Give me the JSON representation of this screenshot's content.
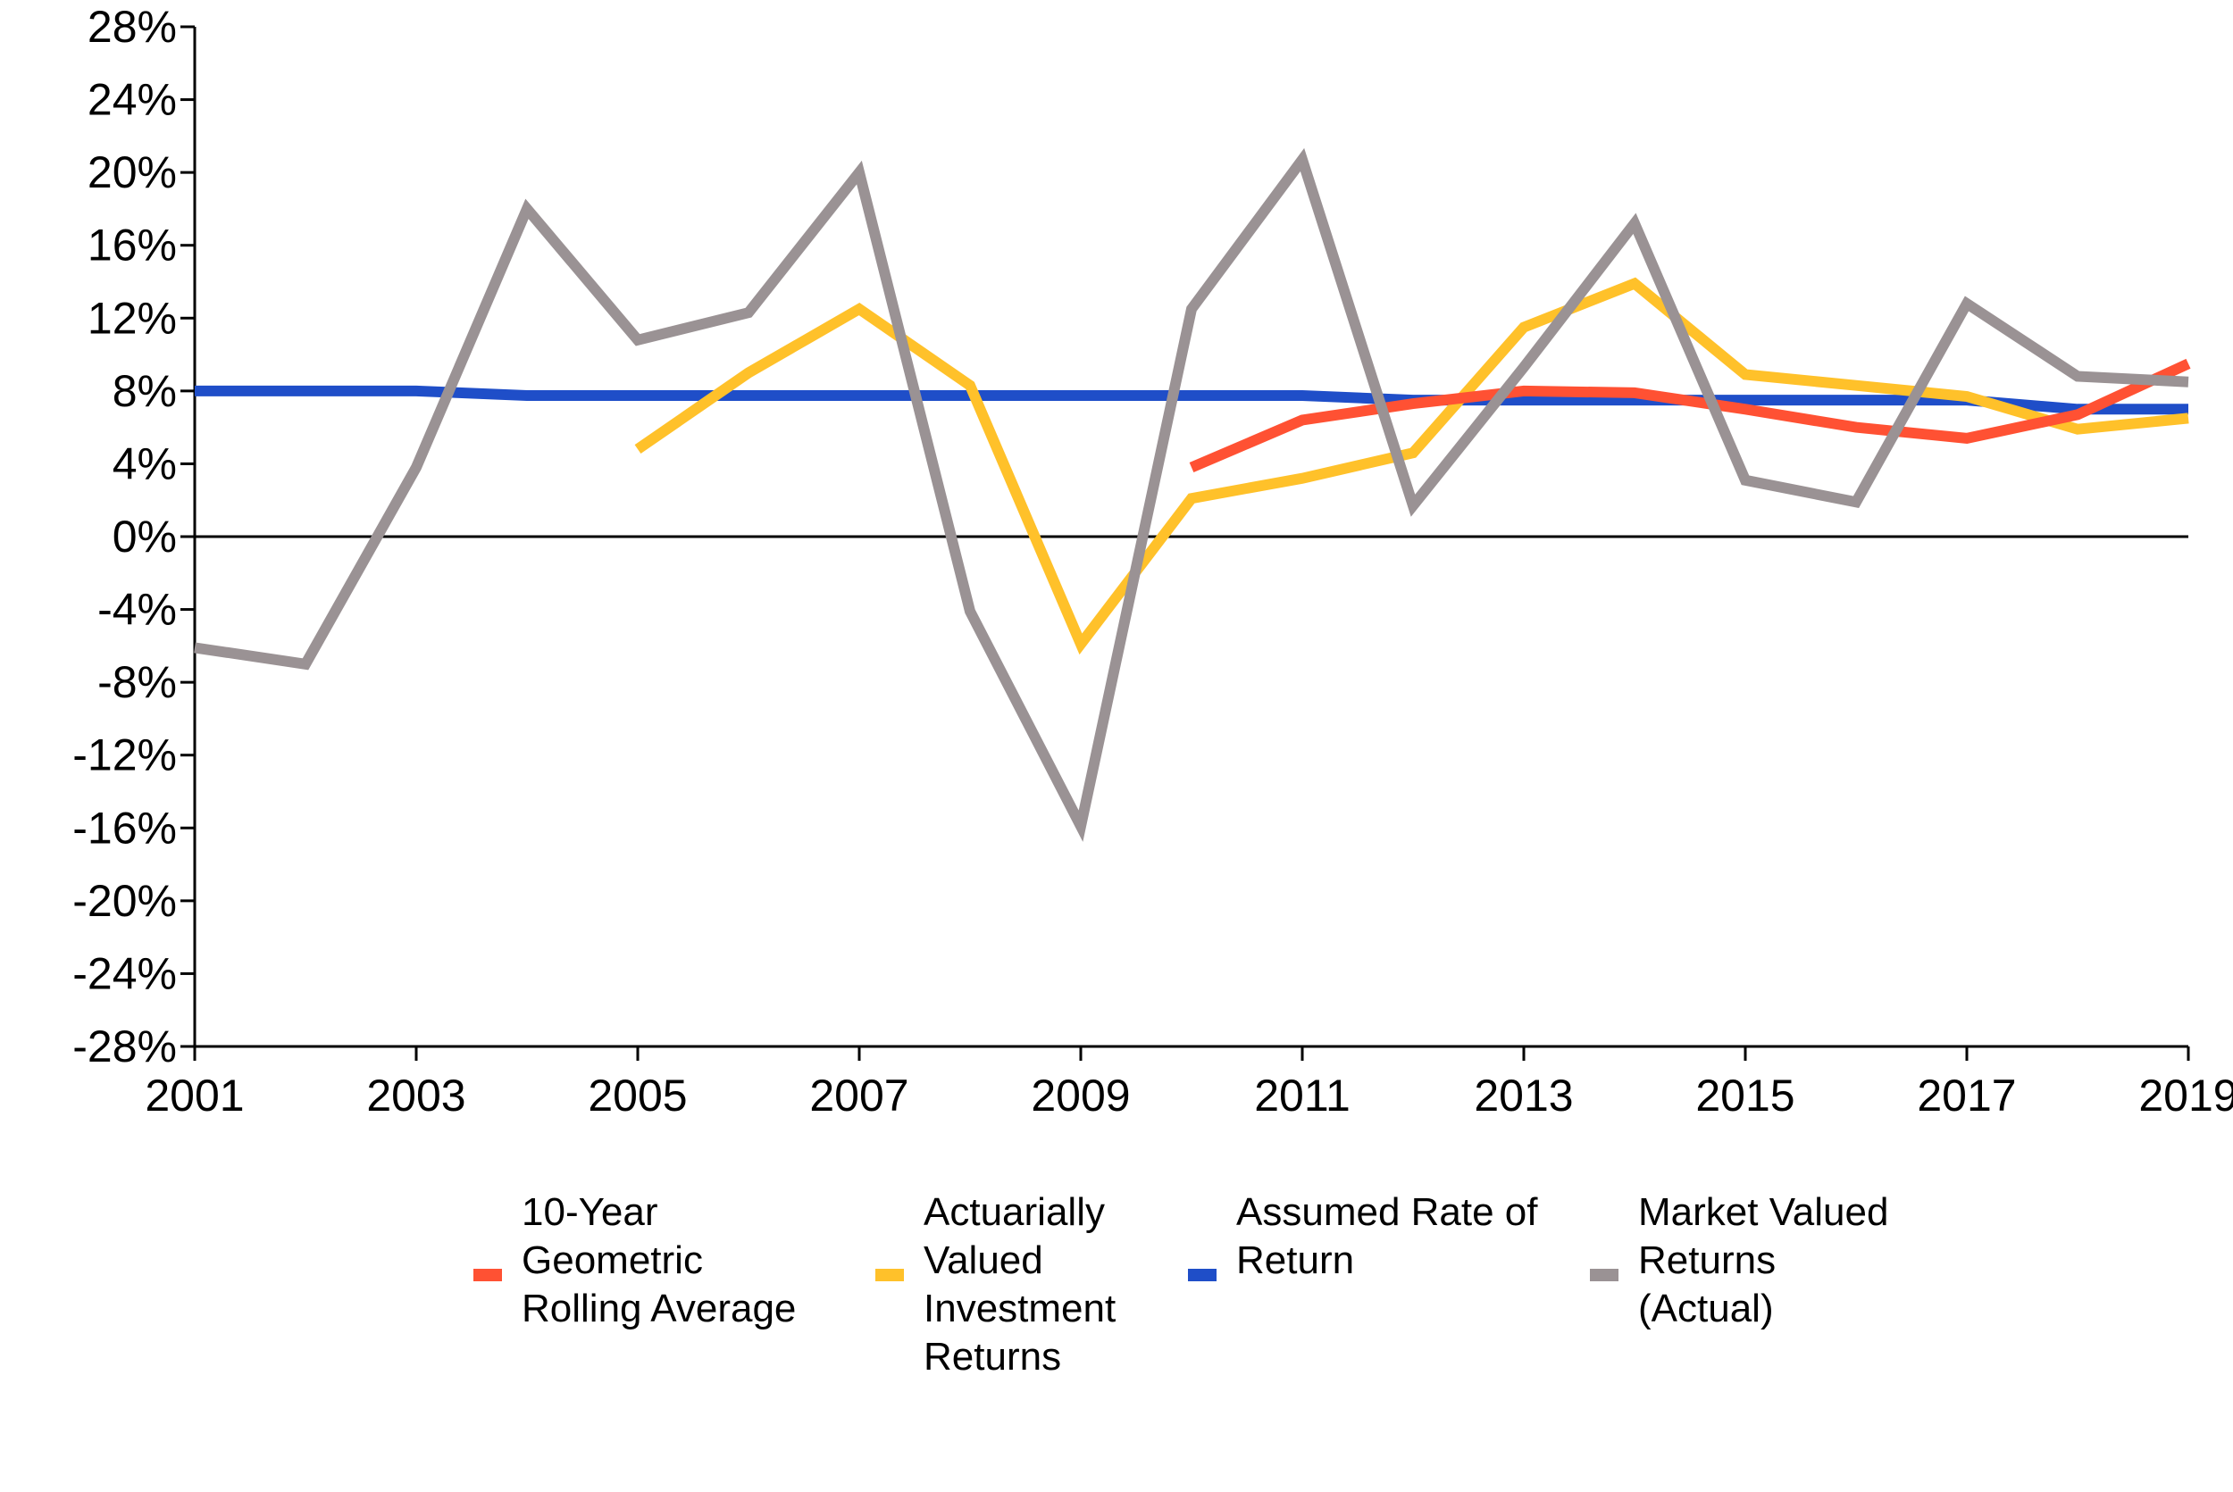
{
  "chart_data": {
    "type": "line",
    "x": [
      2001,
      2002,
      2003,
      2004,
      2005,
      2006,
      2007,
      2008,
      2009,
      2010,
      2011,
      2012,
      2013,
      2014,
      2015,
      2016,
      2017,
      2018,
      2019
    ],
    "x_tick_labels": [
      "2001",
      "2003",
      "2005",
      "2007",
      "2009",
      "2011",
      "2013",
      "2015",
      "2017",
      "2019"
    ],
    "xlim": [
      2001,
      2019
    ],
    "ylim": [
      -28,
      28
    ],
    "y_ticks": [
      28,
      24,
      20,
      16,
      12,
      8,
      4,
      0,
      -4,
      -8,
      -12,
      -16,
      -20,
      -24,
      -28
    ],
    "y_tick_labels": [
      "28%",
      "24%",
      "20%",
      "16%",
      "12%",
      "8%",
      "4%",
      "0%",
      "-4%",
      "-8%",
      "-12%",
      "-16%",
      "-20%",
      "-24%",
      "-28%"
    ],
    "grid": false,
    "zero_line": true,
    "legend_position": "bottom",
    "series": [
      {
        "name": "10-Year Geometric Rolling Average",
        "legend_lines": [
          "10-Year",
          "Geometric",
          "Rolling Average"
        ],
        "color": "#ff5133",
        "values": [
          null,
          null,
          null,
          null,
          null,
          null,
          null,
          null,
          null,
          3.8,
          6.4,
          7.3,
          8.0,
          7.9,
          7.0,
          6.0,
          5.4,
          6.7,
          9.5
        ]
      },
      {
        "name": "Actuarially Valued Investment Returns",
        "legend_lines": [
          "Actuarially",
          "Valued",
          "Investment",
          "Returns"
        ],
        "color": "#ffc12a",
        "values": [
          null,
          null,
          null,
          null,
          4.8,
          9.0,
          12.5,
          8.3,
          -5.9,
          2.1,
          3.2,
          4.6,
          11.5,
          13.9,
          8.9,
          8.3,
          7.7,
          5.9,
          6.5
        ]
      },
      {
        "name": "Assumed Rate of Return",
        "legend_lines": [
          "Assumed Rate of",
          "Return"
        ],
        "color": "#1f4ec8",
        "values": [
          8.0,
          8.0,
          8.0,
          7.75,
          7.75,
          7.75,
          7.75,
          7.75,
          7.75,
          7.75,
          7.75,
          7.5,
          7.5,
          7.5,
          7.5,
          7.5,
          7.5,
          7.0,
          7.0
        ]
      },
      {
        "name": "Market Valued Returns (Actual)",
        "legend_lines": [
          "Market Valued",
          "Returns",
          "(Actual)"
        ],
        "color": "#9a9294",
        "values": [
          -6.1,
          -7.0,
          3.8,
          18.0,
          10.8,
          12.3,
          20.0,
          -4.1,
          -15.9,
          12.5,
          20.7,
          1.7,
          9.3,
          17.2,
          3.1,
          1.9,
          12.8,
          8.8,
          8.5
        ]
      }
    ]
  }
}
